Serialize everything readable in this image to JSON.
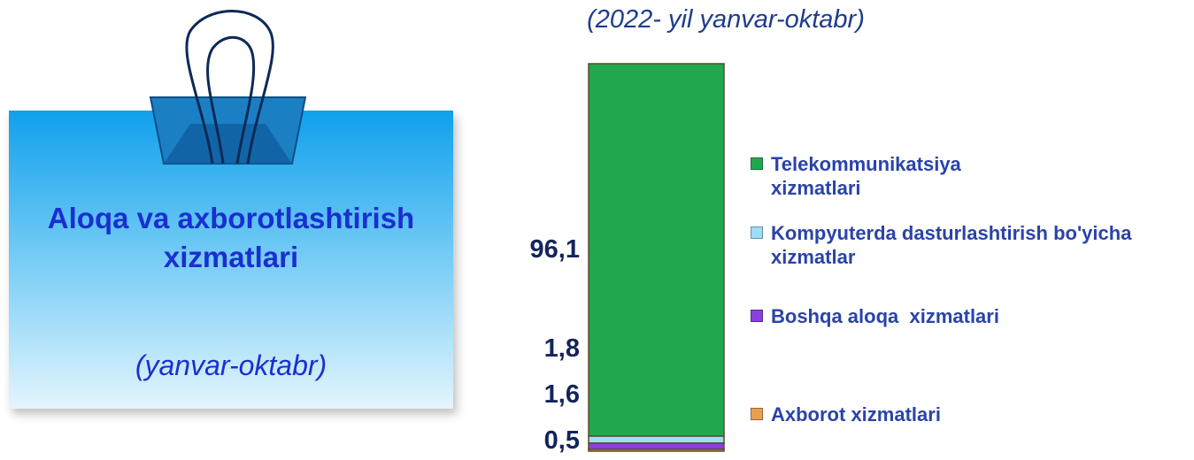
{
  "card": {
    "title": "Aloqa va axborotlashtirish xizmatlari",
    "period": "(yanvar-oktabr)"
  },
  "chart_data": {
    "type": "stacked-bar",
    "subtitle": "(2022- yil yanvar-oktabr)",
    "series": [
      {
        "name": "Telekommunikatsiya xizmatlari",
        "color": "#21a84f",
        "values": [
          96.1
        ],
        "value_labels": [
          "96,1"
        ]
      },
      {
        "name": "Kompyuterda dasturlashtirish bo'yicha xizmatlar",
        "color": "#9fdcf5",
        "values": [
          1.8
        ],
        "value_labels": [
          "1,8"
        ]
      },
      {
        "name": "Boshqa aloqa  xizmatlari",
        "color": "#8a3fe0",
        "values": [
          1.6
        ],
        "value_labels": [
          "1,6"
        ]
      },
      {
        "name": "Axborot xizmatlari",
        "color": "#e8a050",
        "values": [
          0.5
        ],
        "value_labels": [
          "0,5"
        ]
      }
    ]
  }
}
